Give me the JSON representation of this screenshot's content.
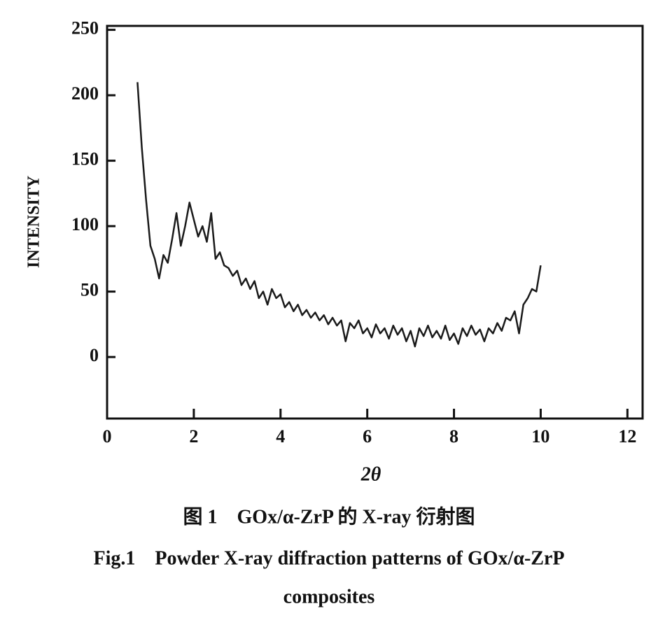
{
  "chart_data": {
    "type": "line",
    "y_label": "INTENSITY",
    "x_label": "2θ",
    "captions": [
      "图 1　GOx/α-ZrP 的 X-ray 衍射图",
      "Fig.1　Powder X-ray diffraction patterns of GOx/α-ZrP",
      "composites"
    ],
    "xlim": [
      0,
      12.35
    ],
    "xticks": [
      0,
      2,
      4,
      6,
      8,
      10,
      12
    ],
    "ylim": [
      -47,
      253
    ],
    "yticks": [
      0,
      50,
      100,
      150,
      200,
      250
    ],
    "grid": false,
    "series": [
      {
        "color": "#1a1a1a",
        "x": [
          0.7,
          0.8,
          0.9,
          1.0,
          1.1,
          1.2,
          1.3,
          1.4,
          1.5,
          1.6,
          1.7,
          1.8,
          1.9,
          2.0,
          2.1,
          2.2,
          2.3,
          2.4,
          2.5,
          2.6,
          2.7,
          2.8,
          2.9,
          3.0,
          3.1,
          3.2,
          3.3,
          3.4,
          3.5,
          3.6,
          3.7,
          3.8,
          3.9,
          4.0,
          4.1,
          4.2,
          4.3,
          4.4,
          4.5,
          4.6,
          4.7,
          4.8,
          4.9,
          5.0,
          5.1,
          5.2,
          5.3,
          5.4,
          5.5,
          5.6,
          5.7,
          5.8,
          5.9,
          6.0,
          6.1,
          6.2,
          6.3,
          6.4,
          6.5,
          6.6,
          6.7,
          6.8,
          6.9,
          7.0,
          7.1,
          7.2,
          7.3,
          7.4,
          7.5,
          7.6,
          7.7,
          7.8,
          7.9,
          8.0,
          8.1,
          8.2,
          8.3,
          8.4,
          8.5,
          8.6,
          8.7,
          8.8,
          8.9,
          9.0,
          9.1,
          9.2,
          9.3,
          9.4,
          9.5,
          9.6,
          9.7,
          9.8,
          9.9,
          10.0
        ],
        "values": [
          210,
          160,
          120,
          85,
          75,
          60,
          78,
          72,
          90,
          110,
          85,
          100,
          118,
          105,
          92,
          100,
          88,
          110,
          75,
          80,
          70,
          68,
          62,
          66,
          55,
          60,
          52,
          58,
          45,
          50,
          40,
          52,
          45,
          48,
          38,
          42,
          35,
          40,
          32,
          36,
          30,
          34,
          28,
          32,
          25,
          30,
          24,
          28,
          12,
          26,
          22,
          28,
          18,
          22,
          15,
          25,
          18,
          22,
          14,
          24,
          17,
          22,
          12,
          20,
          8,
          22,
          16,
          24,
          15,
          20,
          14,
          24,
          13,
          18,
          10,
          22,
          16,
          24,
          17,
          21,
          12,
          22,
          18,
          26,
          20,
          30,
          28,
          35,
          18,
          40,
          45,
          52,
          50,
          70
        ]
      }
    ]
  }
}
